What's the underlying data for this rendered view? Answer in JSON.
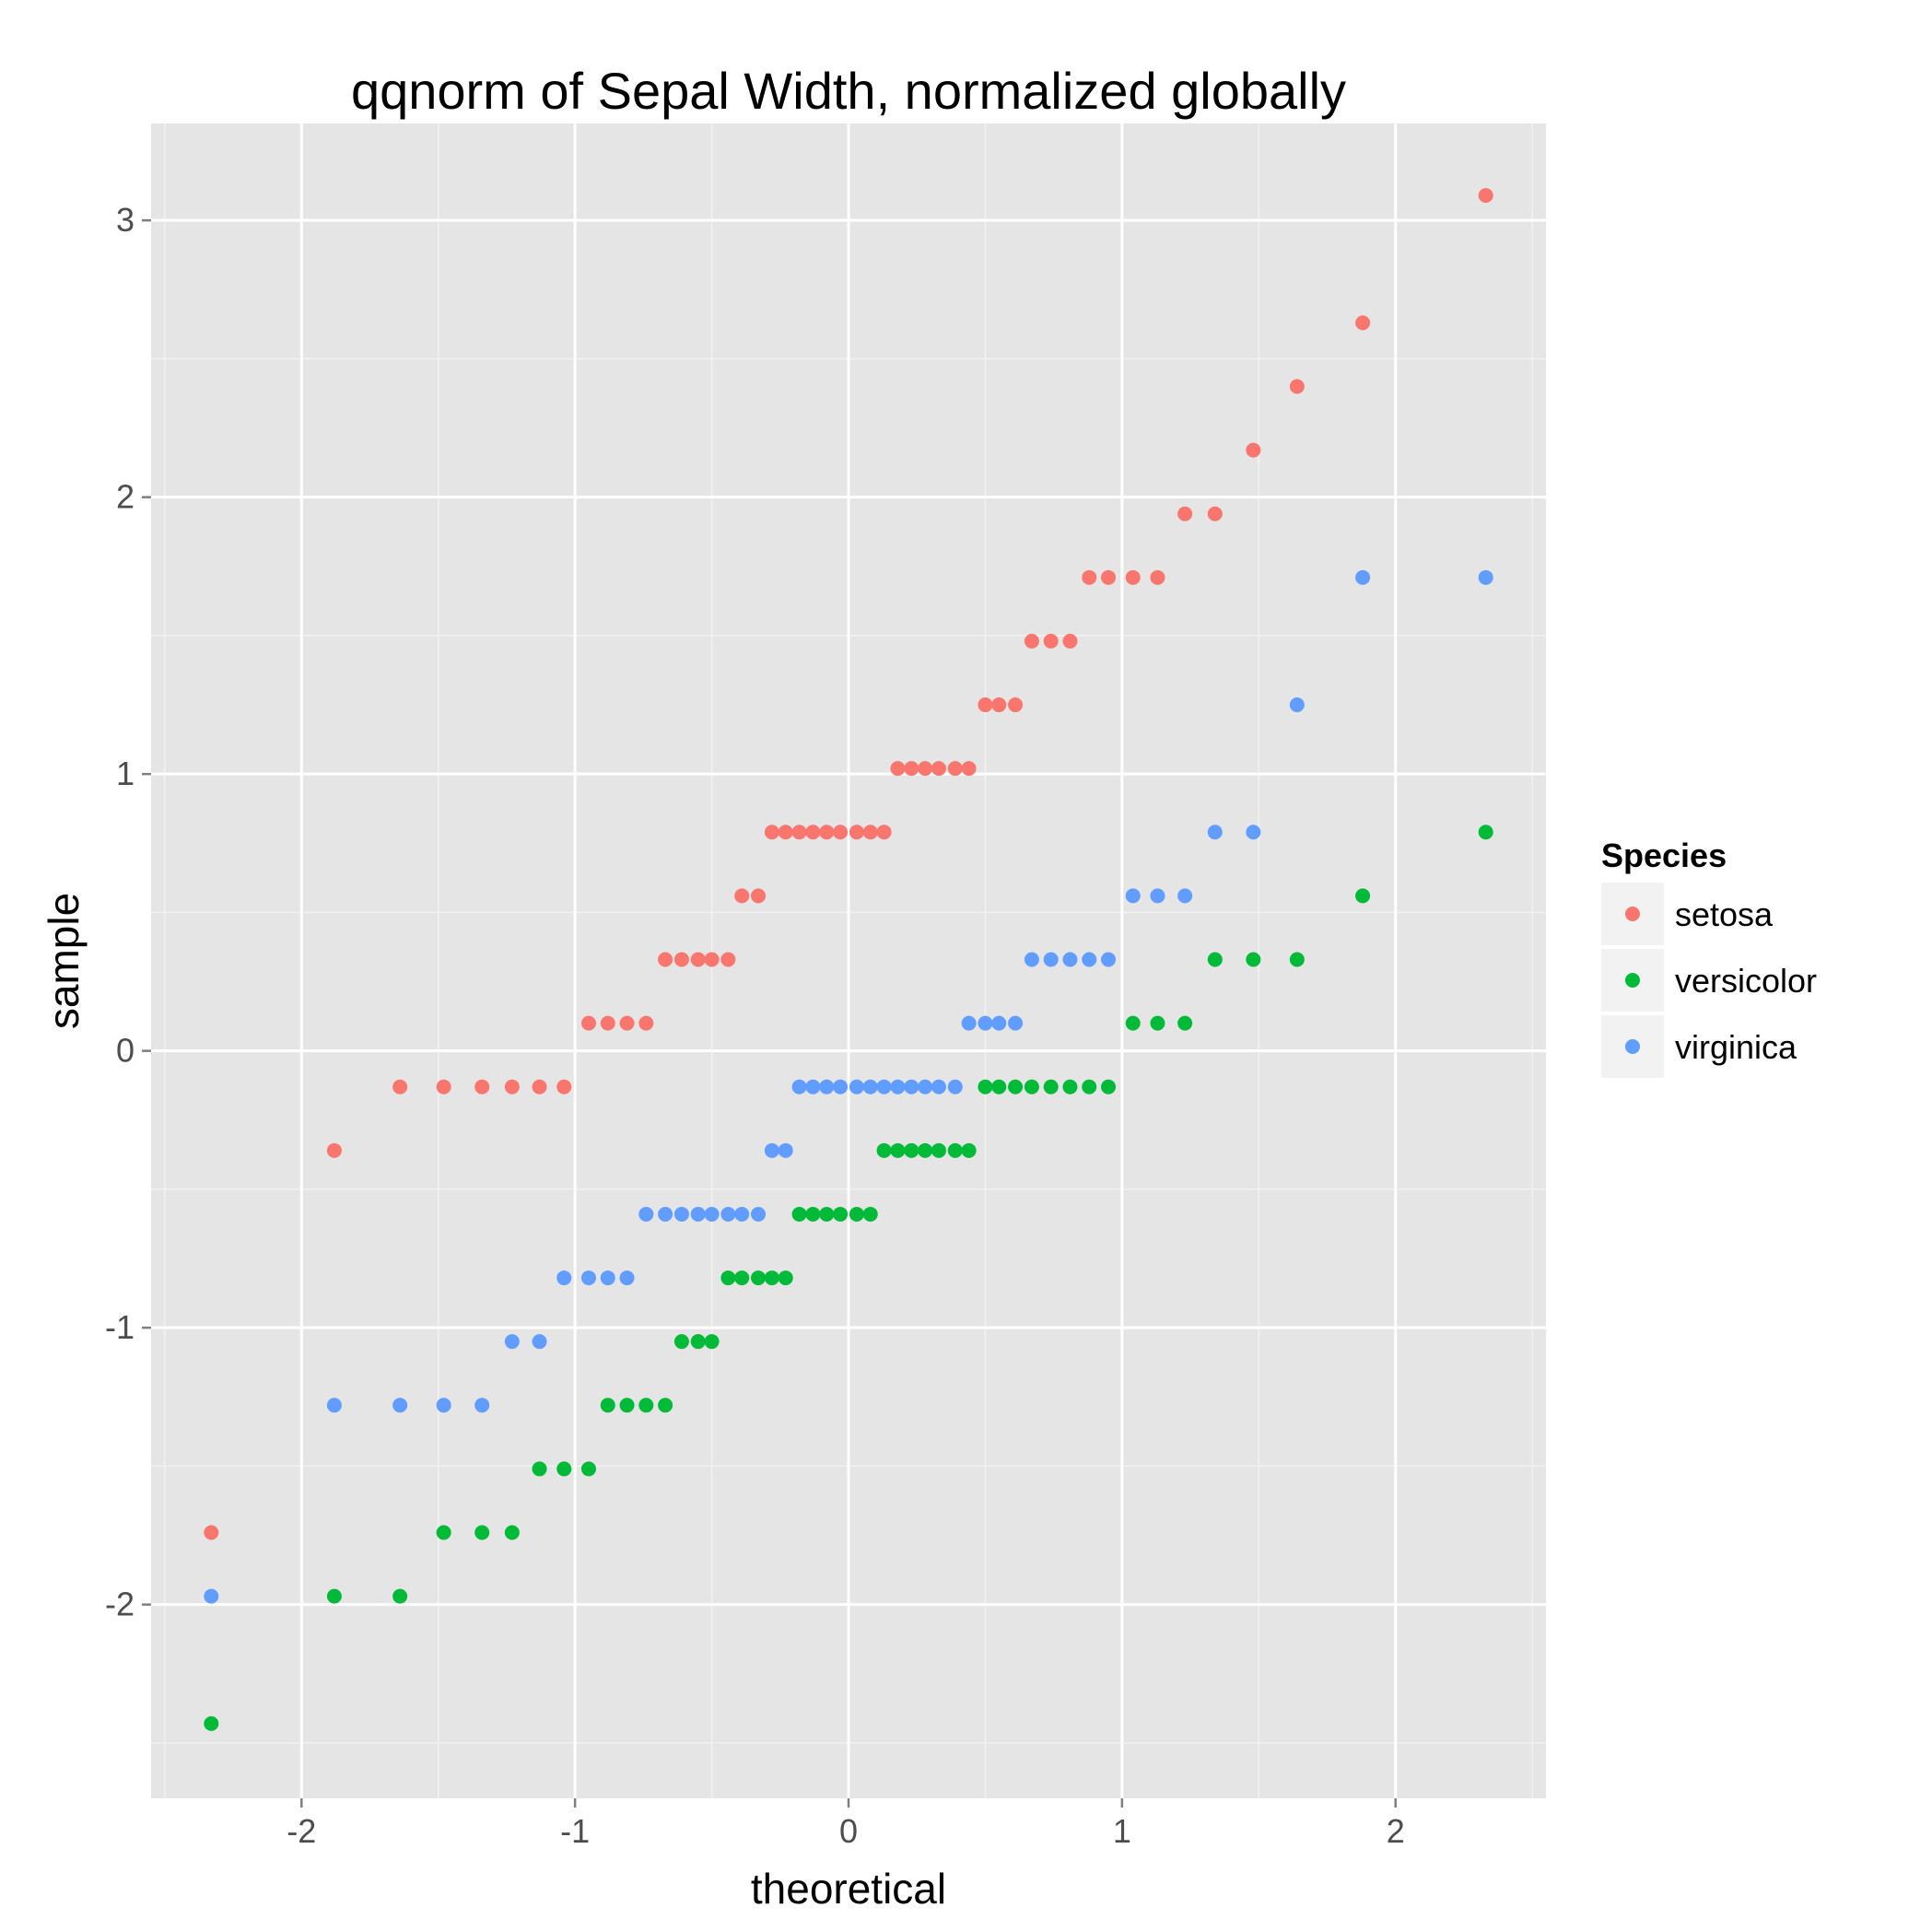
{
  "chart_data": {
    "type": "scatter",
    "title": "qqnorm of Sepal Width, normalized globally",
    "xlabel": "theoretical",
    "ylabel": "sample",
    "xlim": [
      -2.55,
      2.55
    ],
    "ylim": [
      -2.7,
      3.35
    ],
    "x_ticks": [
      -2,
      -1,
      0,
      1,
      2
    ],
    "x_tick_labels": [
      "-2",
      "-1",
      "0",
      "1",
      "2"
    ],
    "y_ticks": [
      -2,
      -1,
      0,
      1,
      2,
      3
    ],
    "y_tick_labels": [
      "-2",
      "-1",
      "0",
      "1",
      "2",
      "3"
    ],
    "grid": true,
    "legend": {
      "title": "Species",
      "placement": "right"
    },
    "series": [
      {
        "name": "setosa",
        "color": "#F8766D",
        "points": [
          [
            -2.33,
            -1.74
          ],
          [
            -1.88,
            -0.36
          ],
          [
            -1.64,
            -0.13
          ],
          [
            -1.48,
            -0.13
          ],
          [
            -1.34,
            -0.13
          ],
          [
            -1.23,
            -0.13
          ],
          [
            -1.13,
            -0.13
          ],
          [
            -1.04,
            -0.13
          ],
          [
            -0.95,
            0.1
          ],
          [
            -0.88,
            0.1
          ],
          [
            -0.81,
            0.1
          ],
          [
            -0.74,
            0.1
          ],
          [
            -0.67,
            0.33
          ],
          [
            -0.61,
            0.33
          ],
          [
            -0.55,
            0.33
          ],
          [
            -0.5,
            0.33
          ],
          [
            -0.44,
            0.33
          ],
          [
            -0.39,
            0.56
          ],
          [
            -0.33,
            0.56
          ],
          [
            -0.28,
            0.79
          ],
          [
            -0.23,
            0.79
          ],
          [
            -0.18,
            0.79
          ],
          [
            -0.13,
            0.79
          ],
          [
            -0.08,
            0.79
          ],
          [
            -0.03,
            0.79
          ],
          [
            0.03,
            0.79
          ],
          [
            0.08,
            0.79
          ],
          [
            0.13,
            0.79
          ],
          [
            0.18,
            1.02
          ],
          [
            0.23,
            1.02
          ],
          [
            0.28,
            1.02
          ],
          [
            0.33,
            1.02
          ],
          [
            0.39,
            1.02
          ],
          [
            0.44,
            1.02
          ],
          [
            0.5,
            1.25
          ],
          [
            0.55,
            1.25
          ],
          [
            0.61,
            1.25
          ],
          [
            0.67,
            1.48
          ],
          [
            0.74,
            1.48
          ],
          [
            0.81,
            1.48
          ],
          [
            0.88,
            1.71
          ],
          [
            0.95,
            1.71
          ],
          [
            1.04,
            1.71
          ],
          [
            1.13,
            1.71
          ],
          [
            1.23,
            1.94
          ],
          [
            1.34,
            1.94
          ],
          [
            1.48,
            2.17
          ],
          [
            1.64,
            2.4
          ],
          [
            1.88,
            2.63
          ],
          [
            2.33,
            3.09
          ]
        ]
      },
      {
        "name": "versicolor",
        "color": "#00BA38",
        "points": [
          [
            -2.33,
            -2.43
          ],
          [
            -1.88,
            -1.97
          ],
          [
            -1.64,
            -1.97
          ],
          [
            -1.48,
            -1.74
          ],
          [
            -1.34,
            -1.74
          ],
          [
            -1.23,
            -1.74
          ],
          [
            -1.13,
            -1.51
          ],
          [
            -1.04,
            -1.51
          ],
          [
            -0.95,
            -1.51
          ],
          [
            -0.88,
            -1.28
          ],
          [
            -0.81,
            -1.28
          ],
          [
            -0.74,
            -1.28
          ],
          [
            -0.67,
            -1.28
          ],
          [
            -0.61,
            -1.05
          ],
          [
            -0.55,
            -1.05
          ],
          [
            -0.5,
            -1.05
          ],
          [
            -0.44,
            -0.82
          ],
          [
            -0.39,
            -0.82
          ],
          [
            -0.33,
            -0.82
          ],
          [
            -0.28,
            -0.82
          ],
          [
            -0.23,
            -0.82
          ],
          [
            -0.18,
            -0.59
          ],
          [
            -0.13,
            -0.59
          ],
          [
            -0.08,
            -0.59
          ],
          [
            -0.03,
            -0.59
          ],
          [
            0.03,
            -0.59
          ],
          [
            0.08,
            -0.59
          ],
          [
            0.13,
            -0.36
          ],
          [
            0.18,
            -0.36
          ],
          [
            0.23,
            -0.36
          ],
          [
            0.28,
            -0.36
          ],
          [
            0.33,
            -0.36
          ],
          [
            0.39,
            -0.36
          ],
          [
            0.44,
            -0.36
          ],
          [
            0.5,
            -0.13
          ],
          [
            0.55,
            -0.13
          ],
          [
            0.61,
            -0.13
          ],
          [
            0.67,
            -0.13
          ],
          [
            0.74,
            -0.13
          ],
          [
            0.81,
            -0.13
          ],
          [
            0.88,
            -0.13
          ],
          [
            0.95,
            -0.13
          ],
          [
            1.04,
            0.1
          ],
          [
            1.13,
            0.1
          ],
          [
            1.23,
            0.1
          ],
          [
            1.34,
            0.33
          ],
          [
            1.48,
            0.33
          ],
          [
            1.64,
            0.33
          ],
          [
            1.88,
            0.56
          ],
          [
            2.33,
            0.79
          ]
        ]
      },
      {
        "name": "virginica",
        "color": "#619CFF",
        "points": [
          [
            -2.33,
            -1.97
          ],
          [
            -1.88,
            -1.28
          ],
          [
            -1.64,
            -1.28
          ],
          [
            -1.48,
            -1.28
          ],
          [
            -1.34,
            -1.28
          ],
          [
            -1.23,
            -1.05
          ],
          [
            -1.13,
            -1.05
          ],
          [
            -1.04,
            -0.82
          ],
          [
            -0.95,
            -0.82
          ],
          [
            -0.88,
            -0.82
          ],
          [
            -0.81,
            -0.82
          ],
          [
            -0.74,
            -0.59
          ],
          [
            -0.67,
            -0.59
          ],
          [
            -0.61,
            -0.59
          ],
          [
            -0.55,
            -0.59
          ],
          [
            -0.5,
            -0.59
          ],
          [
            -0.44,
            -0.59
          ],
          [
            -0.39,
            -0.59
          ],
          [
            -0.33,
            -0.59
          ],
          [
            -0.28,
            -0.36
          ],
          [
            -0.23,
            -0.36
          ],
          [
            -0.18,
            -0.13
          ],
          [
            -0.13,
            -0.13
          ],
          [
            -0.08,
            -0.13
          ],
          [
            -0.03,
            -0.13
          ],
          [
            0.03,
            -0.13
          ],
          [
            0.08,
            -0.13
          ],
          [
            0.13,
            -0.13
          ],
          [
            0.18,
            -0.13
          ],
          [
            0.23,
            -0.13
          ],
          [
            0.28,
            -0.13
          ],
          [
            0.33,
            -0.13
          ],
          [
            0.39,
            -0.13
          ],
          [
            0.44,
            0.1
          ],
          [
            0.5,
            0.1
          ],
          [
            0.55,
            0.1
          ],
          [
            0.61,
            0.1
          ],
          [
            0.67,
            0.33
          ],
          [
            0.74,
            0.33
          ],
          [
            0.81,
            0.33
          ],
          [
            0.88,
            0.33
          ],
          [
            0.95,
            0.33
          ],
          [
            1.04,
            0.56
          ],
          [
            1.13,
            0.56
          ],
          [
            1.23,
            0.56
          ],
          [
            1.34,
            0.79
          ],
          [
            1.48,
            0.79
          ],
          [
            1.64,
            1.25
          ],
          [
            1.88,
            1.71
          ],
          [
            2.33,
            1.71
          ]
        ]
      }
    ]
  }
}
